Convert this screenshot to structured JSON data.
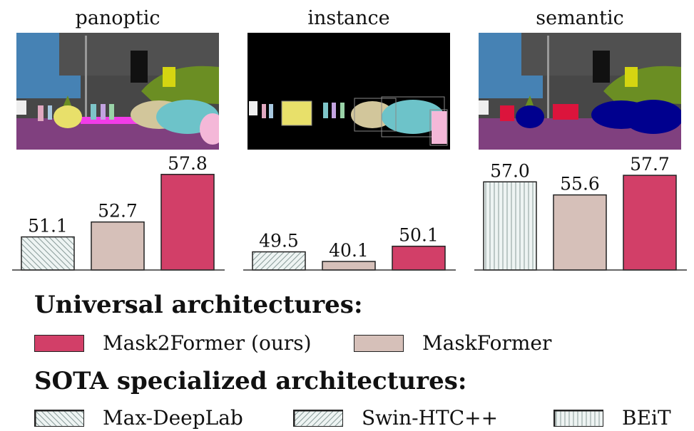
{
  "panels": [
    {
      "title": "panoptic"
    },
    {
      "title": "instance"
    },
    {
      "title": "semantic"
    }
  ],
  "colors": {
    "mask2former": "#d23f68",
    "maskformer": "#d6c0b9",
    "hatch_bg": "#eef4f3",
    "hatch_line": "#8a9c9a",
    "axis": "#333333"
  },
  "chart_data": [
    {
      "type": "bar",
      "title": "panoptic",
      "categories": [
        "Max-DeepLab",
        "MaskFormer",
        "Mask2Former (ours)"
      ],
      "values": [
        51.1,
        52.7,
        57.8
      ],
      "value_labels": [
        "51.1",
        "52.7",
        "57.8"
      ],
      "fills": [
        "hatch-back",
        "maskformer",
        "mask2former"
      ]
    },
    {
      "type": "bar",
      "title": "instance",
      "categories": [
        "Swin-HTC++",
        "MaskFormer",
        "Mask2Former (ours)"
      ],
      "values": [
        49.5,
        40.1,
        50.1
      ],
      "value_labels": [
        "49.5",
        "40.1",
        "50.1"
      ],
      "fills": [
        "hatch-fwd",
        "maskformer",
        "mask2former"
      ]
    },
    {
      "type": "bar",
      "title": "semantic",
      "categories": [
        "BEiT",
        "MaskFormer",
        "Mask2Former (ours)"
      ],
      "values": [
        57.0,
        55.6,
        57.7
      ],
      "value_labels": [
        "57.0",
        "55.6",
        "57.7"
      ],
      "fills": [
        "hatch-vert",
        "maskformer",
        "mask2former"
      ]
    }
  ],
  "legend": {
    "universal_heading": "Universal architectures:",
    "sota_heading": "SOTA specialized architectures:",
    "universal_items": [
      {
        "label": "Mask2Former (ours)",
        "fill": "mask2former"
      },
      {
        "label": "MaskFormer",
        "fill": "maskformer"
      }
    ],
    "sota_items": [
      {
        "label": "Max-DeepLab",
        "fill": "hatch-back"
      },
      {
        "label": "Swin-HTC++",
        "fill": "hatch-fwd"
      },
      {
        "label": "BEiT",
        "fill": "hatch-vert"
      }
    ]
  }
}
